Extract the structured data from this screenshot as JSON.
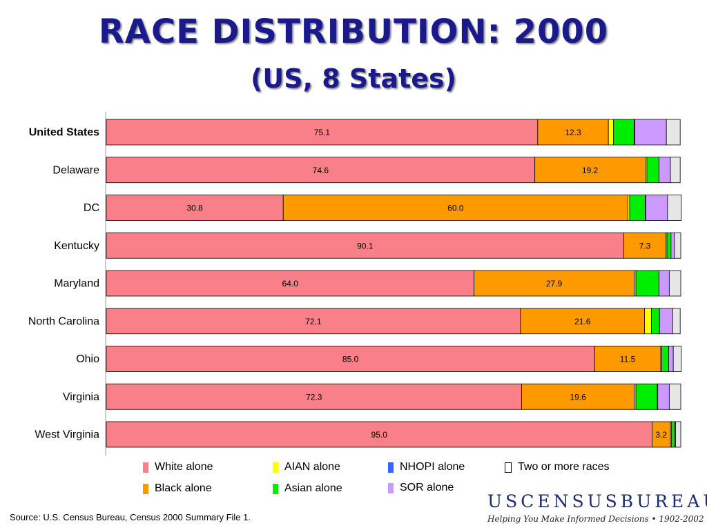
{
  "title": "RACE DISTRIBUTION: 2000",
  "subtitle": "(US, 8 States)",
  "chart_data": {
    "type": "bar",
    "orientation": "horizontal",
    "stacked": true,
    "categories": [
      "United States",
      "Delaware",
      "DC",
      "Kentucky",
      "Maryland",
      "North Carolina",
      "Ohio",
      "Virginia",
      "West Virginia"
    ],
    "highlight_category": "United States",
    "xlim": [
      0,
      100
    ],
    "grid": false,
    "legend_position": "bottom",
    "series": [
      {
        "name": "White alone",
        "color": "#f98088",
        "values": [
          75.1,
          74.6,
          30.8,
          90.1,
          64.0,
          72.1,
          85.0,
          72.3,
          95.0
        ],
        "labels": [
          "75.1",
          "74.6",
          "30.8",
          "90.1",
          "64.0",
          "72.1",
          "85.0",
          "72.3",
          "95.0"
        ]
      },
      {
        "name": "Black alone",
        "color": "#ff9900",
        "values": [
          12.3,
          19.2,
          60.0,
          7.3,
          27.9,
          21.6,
          11.5,
          19.6,
          3.2
        ],
        "labels": [
          "12.3",
          "19.2",
          "60.0",
          "7.3",
          "27.9",
          "21.6",
          "11.5",
          "19.6",
          "3.2"
        ]
      },
      {
        "name": "AIAN alone",
        "color": "#ffff00",
        "values": [
          0.9,
          0.3,
          0.3,
          0.2,
          0.3,
          1.2,
          0.2,
          0.3,
          0.2
        ],
        "labels": []
      },
      {
        "name": "Asian alone",
        "color": "#00ee00",
        "values": [
          3.6,
          2.1,
          2.7,
          0.7,
          4.0,
          1.4,
          1.2,
          3.7,
          0.5
        ],
        "labels": []
      },
      {
        "name": "NHOPI alone",
        "color": "#3366ff",
        "values": [
          0.1,
          0.0,
          0.1,
          0.0,
          0.0,
          0.0,
          0.0,
          0.1,
          0.0
        ],
        "labels": []
      },
      {
        "name": "SOR alone",
        "color": "#cc99ff",
        "values": [
          5.5,
          2.0,
          3.8,
          0.6,
          1.8,
          2.3,
          0.8,
          2.0,
          0.2
        ],
        "labels": []
      },
      {
        "name": "Two or more races",
        "color": "#e6e6e6",
        "values": [
          2.4,
          1.7,
          2.4,
          1.1,
          2.0,
          1.3,
          1.4,
          2.0,
          0.9
        ],
        "labels": []
      }
    ]
  },
  "legend": [
    {
      "label": "White alone",
      "color": "#f98088"
    },
    {
      "label": "AIAN alone",
      "color": "#ffff00"
    },
    {
      "label": "NHOPI alone",
      "color": "#3366ff"
    },
    {
      "label": "Two or more races",
      "color": "#ffffff"
    },
    {
      "label": "Black alone",
      "color": "#ff9900"
    },
    {
      "label": "Asian alone",
      "color": "#00ee00"
    },
    {
      "label": "SOR alone",
      "color": "#cc99ff"
    }
  ],
  "source": "Source:  U.S. Census Bureau, Census 2000 Summary File 1.",
  "brand": "USCENSUSBUREAU",
  "tagline": "Helping You Make Informed Decisions • 1902-2002"
}
